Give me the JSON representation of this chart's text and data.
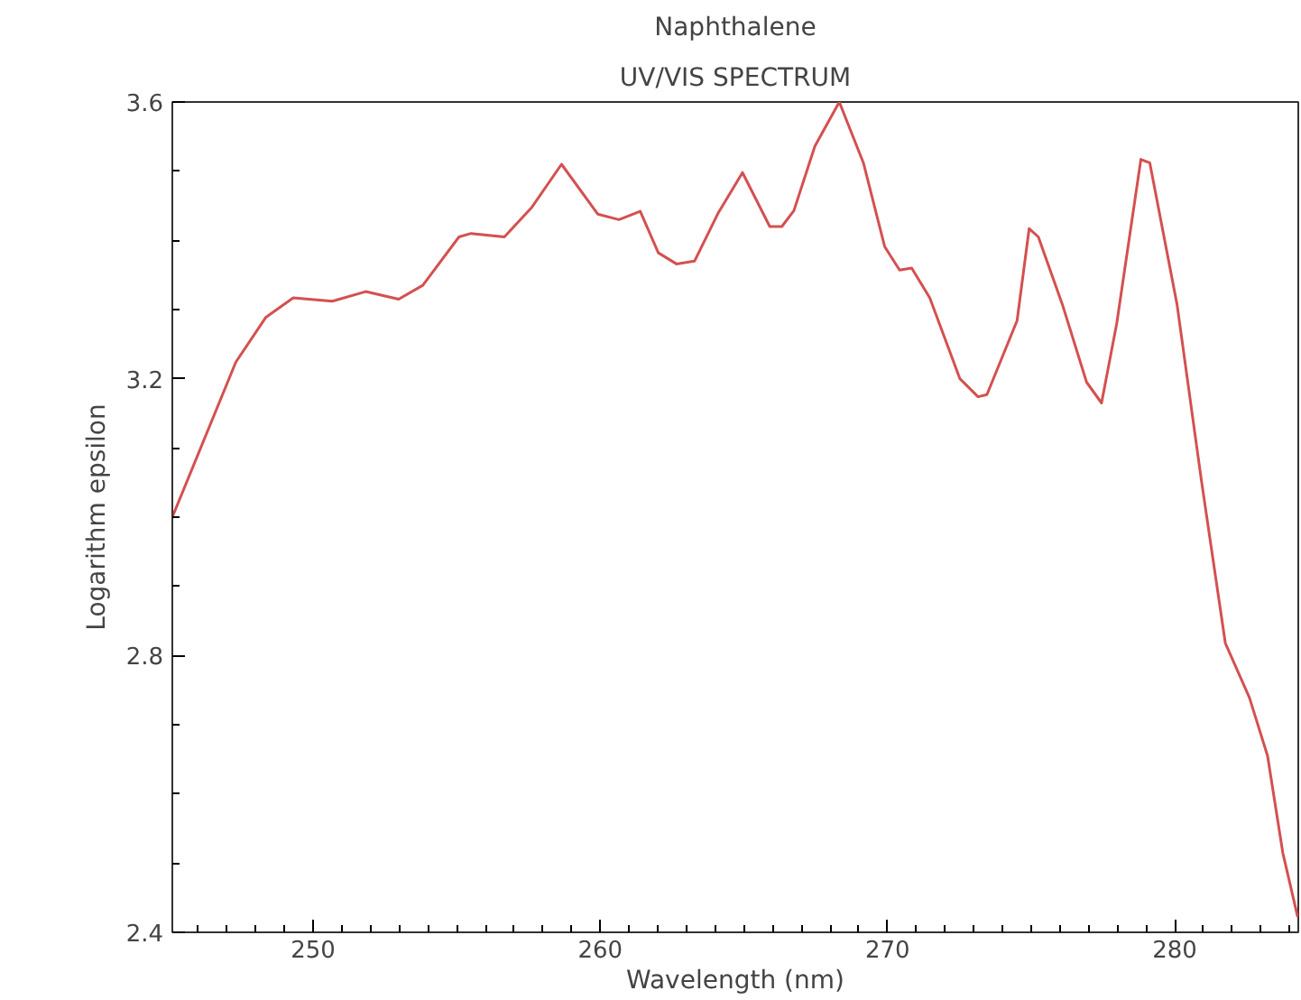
{
  "chart_data": {
    "type": "line",
    "title": "Naphthalene",
    "subtitle": "UV/VIS SPECTRUM",
    "xlabel": "Wavelength (nm)",
    "ylabel": "Logarithm epsilon",
    "x": [
      245.1,
      247.31,
      248.36,
      249.31,
      250.67,
      251.83,
      252.98,
      253.82,
      255.08,
      255.5,
      256.66,
      257.6,
      258.65,
      259.91,
      260.65,
      261.39,
      262.02,
      262.65,
      263.28,
      264.11,
      264.95,
      265.9,
      266.32,
      266.74,
      267.47,
      268.32,
      269.16,
      269.9,
      270.42,
      270.84,
      271.47,
      272.52,
      273.15,
      273.46,
      274.51,
      274.93,
      275.25,
      276.09,
      276.93,
      277.45,
      277.98,
      278.82,
      279.13,
      280.08,
      280.92,
      281.76,
      282.6,
      283.23,
      283.76,
      284.28
    ],
    "series": [
      {
        "color": "#d45050",
        "values": [
          3.0,
          3.224,
          3.289,
          3.317,
          3.312,
          3.326,
          3.315,
          3.335,
          3.405,
          3.41,
          3.405,
          3.447,
          3.51,
          3.438,
          3.43,
          3.442,
          3.382,
          3.366,
          3.37,
          3.44,
          3.498,
          3.42,
          3.42,
          3.443,
          3.536,
          3.6,
          3.512,
          3.391,
          3.357,
          3.36,
          3.317,
          3.2,
          3.174,
          3.177,
          3.284,
          3.417,
          3.405,
          3.307,
          3.195,
          3.165,
          3.28,
          3.517,
          3.512,
          3.307,
          3.055,
          2.818,
          2.739,
          2.655,
          2.515,
          2.422
        ]
      }
    ],
    "xlim": [
      245.1,
      284.3
    ],
    "ylim": [
      2.4,
      3.6
    ],
    "xticks": [
      {
        "value": 246,
        "label": null
      },
      {
        "value": 247,
        "label": null
      },
      {
        "value": 248,
        "label": null
      },
      {
        "value": 249,
        "label": null
      },
      250,
      {
        "value": 251,
        "label": null
      },
      {
        "value": 252,
        "label": null
      },
      {
        "value": 253,
        "label": null
      },
      {
        "value": 254,
        "label": null
      },
      {
        "value": 255,
        "label": null
      },
      {
        "value": 256,
        "label": null
      },
      {
        "value": 257,
        "label": null
      },
      {
        "value": 258,
        "label": null
      },
      {
        "value": 259,
        "label": null
      },
      260,
      {
        "value": 261,
        "label": null
      },
      {
        "value": 262,
        "label": null
      },
      {
        "value": 263,
        "label": null
      },
      {
        "value": 264,
        "label": null
      },
      {
        "value": 265,
        "label": null
      },
      {
        "value": 266,
        "label": null
      },
      {
        "value": 267,
        "label": null
      },
      {
        "value": 268,
        "label": null
      },
      {
        "value": 269,
        "label": null
      },
      270,
      {
        "value": 271,
        "label": null
      },
      {
        "value": 272,
        "label": null
      },
      {
        "value": 273,
        "label": null
      },
      {
        "value": 274,
        "label": null
      },
      {
        "value": 275,
        "label": null
      },
      {
        "value": 276,
        "label": null
      },
      {
        "value": 277,
        "label": null
      },
      {
        "value": 278,
        "label": null
      },
      {
        "value": 279,
        "label": null
      },
      280,
      {
        "value": 281,
        "label": null
      },
      {
        "value": 282,
        "label": null
      },
      {
        "value": 283,
        "label": null
      },
      {
        "value": 284,
        "label": null
      }
    ],
    "yticks": [
      2.4,
      {
        "value": 2.5,
        "label": null
      },
      {
        "value": 2.6,
        "label": null
      },
      {
        "value": 2.7,
        "label": null
      },
      2.8,
      {
        "value": 2.9,
        "label": null
      },
      {
        "value": 3.0,
        "label": null
      },
      {
        "value": 3.1,
        "label": null
      },
      3.2,
      {
        "value": 3.3,
        "label": null
      },
      {
        "value": 3.4,
        "label": null
      },
      {
        "value": 3.5,
        "label": null
      },
      3.6
    ],
    "grid": false,
    "marker": "none",
    "line_style": "solid"
  }
}
